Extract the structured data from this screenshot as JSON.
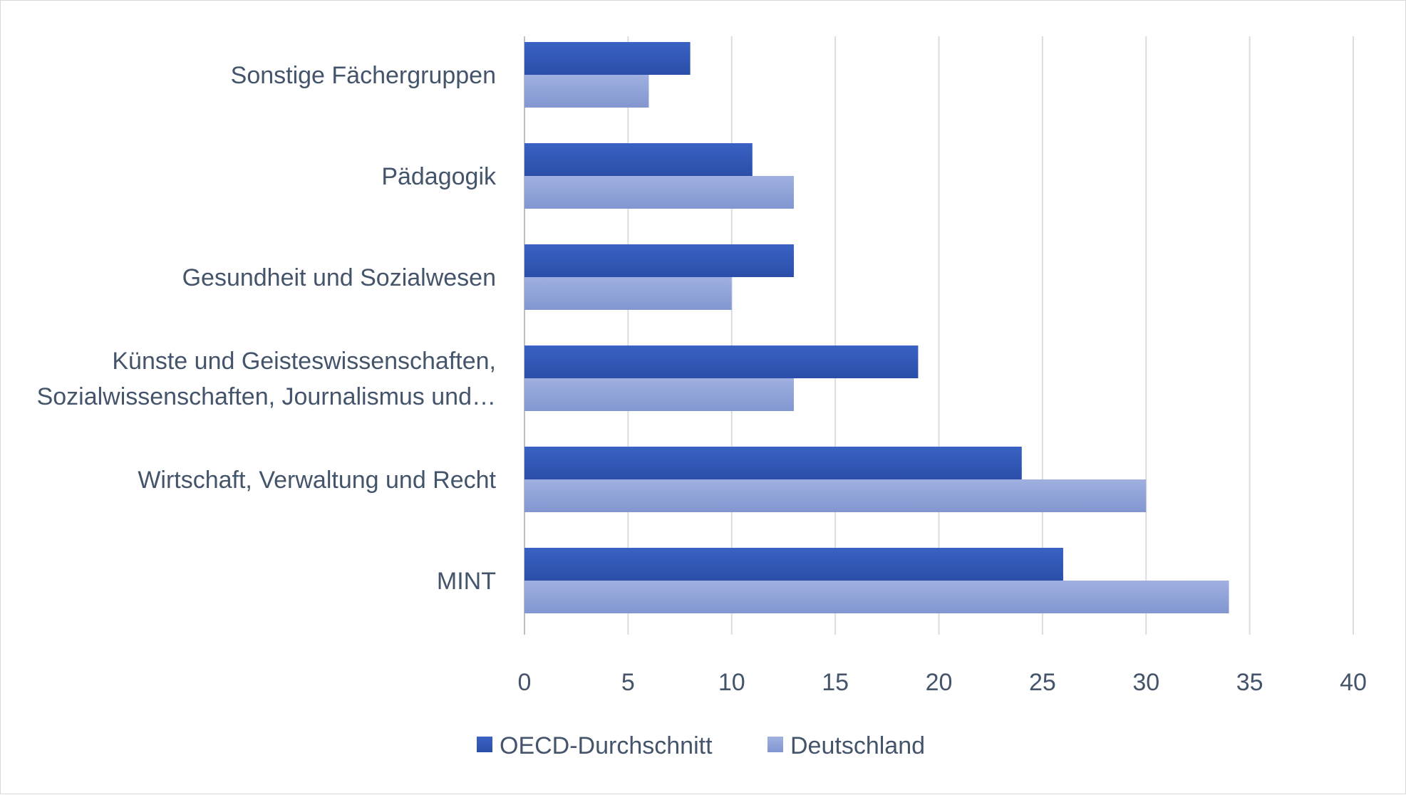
{
  "chart_data": {
    "type": "bar",
    "orientation": "horizontal",
    "title": "",
    "xlabel": "",
    "ylabel": "",
    "xlim": [
      0,
      40
    ],
    "xticks": [
      0,
      5,
      10,
      15,
      20,
      25,
      30,
      35,
      40
    ],
    "grid": true,
    "legend_position": "bottom",
    "categories": [
      [
        "Sonstige Fächergruppen"
      ],
      [
        "Pädagogik"
      ],
      [
        "Gesundheit und Sozialwesen"
      ],
      [
        "Künste und Geisteswissenschaften,",
        "Sozialwissenschaften, Journalismus und…"
      ],
      [
        "Wirtschaft, Verwaltung und Recht"
      ],
      [
        "MINT"
      ]
    ],
    "series": [
      {
        "name": "OECD-Durchschnitt",
        "color": "#2f55b4",
        "values": [
          8,
          11,
          13,
          19,
          24,
          26
        ]
      },
      {
        "name": "Deutschland",
        "color": "#8fa2d8",
        "values": [
          6,
          13,
          10,
          13,
          30,
          34
        ]
      }
    ]
  }
}
